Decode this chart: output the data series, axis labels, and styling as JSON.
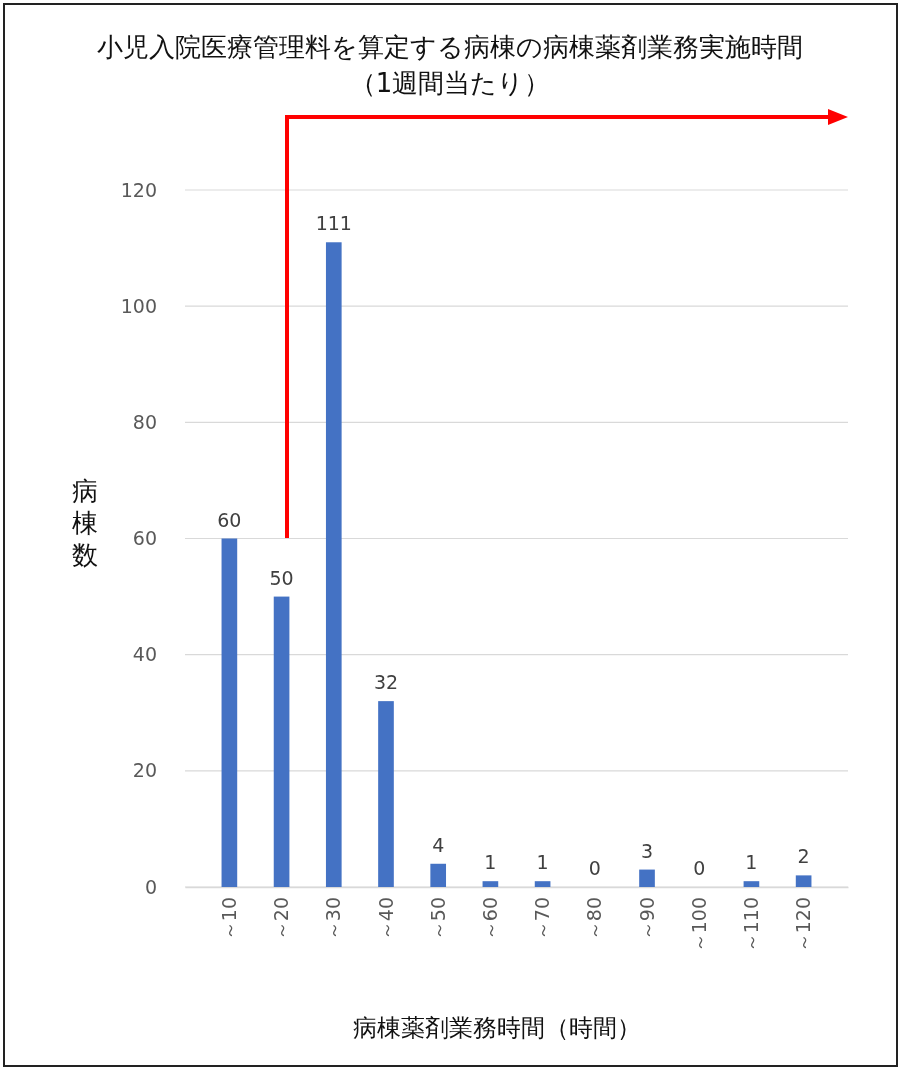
{
  "chart_data": {
    "type": "bar",
    "title": "小児入院医療管理料を算定する病棟の病棟薬剤業務実施時間",
    "subtitle": "（1週間当たり）",
    "xlabel": "病棟薬剤業務時間（時間）",
    "ylabel": "病棟数",
    "categories": [
      "～10",
      "～20",
      "～30",
      "～40",
      "～50",
      "～60",
      "～70",
      "～80",
      "～90",
      "～100",
      "～110",
      "～120"
    ],
    "values": [
      60,
      50,
      111,
      32,
      4,
      1,
      1,
      0,
      3,
      0,
      1,
      2
    ],
    "color": "#4472c4",
    "ylim": [
      0,
      120
    ],
    "yticks": [
      0,
      20,
      40,
      60,
      80,
      100,
      120
    ],
    "grid": "y",
    "data_labels": true
  }
}
